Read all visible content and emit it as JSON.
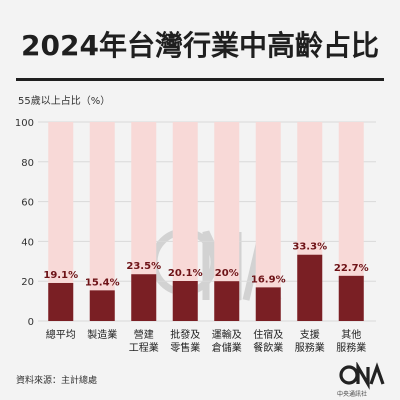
{
  "title": "2024年台灣行業中高齡占比",
  "source": "資料來源：主計總處",
  "logo": {
    "text": "CNA",
    "subtext": "中央通訊社"
  },
  "colors": {
    "bar": "#7a1f24",
    "track": "#f8d9d7",
    "value_text": "#6e1317",
    "grid": "#d9d9d9"
  },
  "chart_data": {
    "type": "bar",
    "ylabel": "55歲以上占比（%）",
    "ylim": [
      0,
      100
    ],
    "yticks": [
      0,
      20,
      40,
      60,
      80,
      100
    ],
    "grid": true,
    "categories": [
      [
        "總平均"
      ],
      [
        "製造業"
      ],
      [
        "營建",
        "工程業"
      ],
      [
        "批發及",
        "零售業"
      ],
      [
        "運輸及",
        "倉儲業"
      ],
      [
        "住宿及",
        "餐飲業"
      ],
      [
        "支援",
        "服務業"
      ],
      [
        "其他",
        "服務業"
      ]
    ],
    "values": [
      19.1,
      15.4,
      23.5,
      20.1,
      20,
      16.9,
      33.3,
      22.7
    ],
    "value_labels": [
      "19.1%",
      "15.4%",
      "23.5%",
      "20.1%",
      "20%",
      "16.9%",
      "33.3%",
      "22.7%"
    ]
  }
}
